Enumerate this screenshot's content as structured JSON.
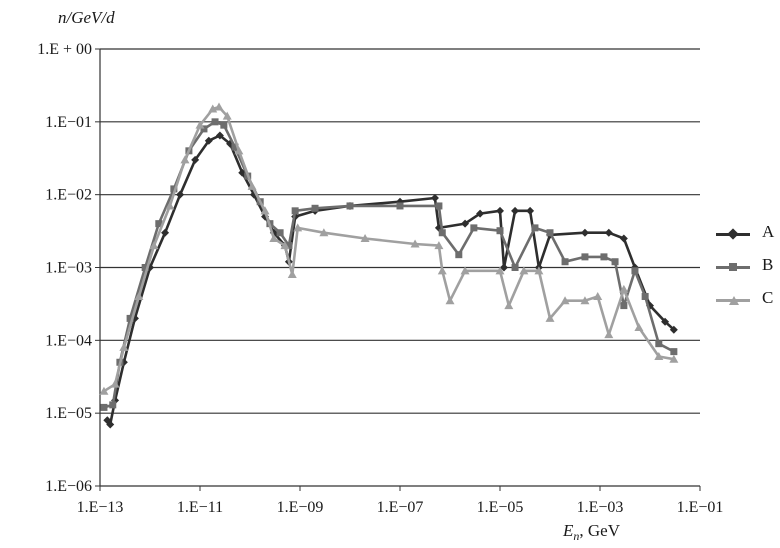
{
  "chart_data": {
    "type": "line",
    "title": "",
    "ylabel": "n/GeV/d",
    "xlabel_main": "E",
    "xlabel_sub": "n",
    "xlabel_tail": ", GeV",
    "x_scale": "log",
    "y_scale": "log",
    "xlim": [
      1e-13,
      0.1
    ],
    "ylim": [
      1e-06,
      1
    ],
    "grid": "horizontal major lines",
    "legend_position": "right",
    "x_ticks": [
      {
        "value": 1e-13,
        "label": "1.E−13"
      },
      {
        "value": 1e-11,
        "label": "1.E−11"
      },
      {
        "value": 1e-09,
        "label": "1.E−09"
      },
      {
        "value": 1e-07,
        "label": "1.E−07"
      },
      {
        "value": 1e-05,
        "label": "1.E−05"
      },
      {
        "value": 0.001,
        "label": "1.E−03"
      },
      {
        "value": 0.1,
        "label": "1.E−01"
      }
    ],
    "y_ticks": [
      {
        "value": 1,
        "label": "1.E + 00"
      },
      {
        "value": 0.1,
        "label": "1.E−01"
      },
      {
        "value": 0.01,
        "label": "1.E−02"
      },
      {
        "value": 0.001,
        "label": "1.E−03"
      },
      {
        "value": 0.0001,
        "label": "1.E−04"
      },
      {
        "value": 1e-05,
        "label": "1.E−05"
      },
      {
        "value": 1e-06,
        "label": "1.E−06"
      }
    ],
    "series": [
      {
        "name": "A",
        "color": "#2e2e2e",
        "marker": "diamond",
        "points": [
          [
            1.4e-13,
            8e-06
          ],
          [
            1.6e-13,
            7e-06
          ],
          [
            2e-13,
            1.5e-05
          ],
          [
            3e-13,
            5e-05
          ],
          [
            5e-13,
            0.0002
          ],
          [
            1e-12,
            0.001
          ],
          [
            2e-12,
            0.003
          ],
          [
            4e-12,
            0.01
          ],
          [
            8e-12,
            0.03
          ],
          [
            1.5e-11,
            0.055
          ],
          [
            2.5e-11,
            0.065
          ],
          [
            4e-11,
            0.05
          ],
          [
            7e-11,
            0.02
          ],
          [
            1.2e-10,
            0.01
          ],
          [
            2e-10,
            0.005
          ],
          [
            3e-10,
            0.003
          ],
          [
            5e-10,
            0.002
          ],
          [
            6e-10,
            0.0012
          ],
          [
            8e-10,
            0.005
          ],
          [
            2e-09,
            0.006
          ],
          [
            1e-08,
            0.007
          ],
          [
            1e-07,
            0.008
          ],
          [
            5e-07,
            0.009
          ],
          [
            6e-07,
            0.0035
          ],
          [
            2e-06,
            0.004
          ],
          [
            4e-06,
            0.0055
          ],
          [
            1e-05,
            0.006
          ],
          [
            1.2e-05,
            0.001
          ],
          [
            2e-05,
            0.006
          ],
          [
            4e-05,
            0.006
          ],
          [
            6e-05,
            0.001
          ],
          [
            0.0001,
            0.0028
          ],
          [
            0.0005,
            0.003
          ],
          [
            0.0015,
            0.003
          ],
          [
            0.003,
            0.0025
          ],
          [
            0.005,
            0.001
          ],
          [
            0.01,
            0.0003
          ],
          [
            0.02,
            0.00018
          ],
          [
            0.03,
            0.00014
          ]
        ]
      },
      {
        "name": "B",
        "color": "#6d6d6d",
        "marker": "square",
        "points": [
          [
            1.2e-13,
            1.2e-05
          ],
          [
            1.8e-13,
            1.3e-05
          ],
          [
            2.5e-13,
            5e-05
          ],
          [
            4e-13,
            0.0002
          ],
          [
            8e-13,
            0.001
          ],
          [
            1.5e-12,
            0.004
          ],
          [
            3e-12,
            0.012
          ],
          [
            6e-12,
            0.04
          ],
          [
            1.2e-11,
            0.08
          ],
          [
            2e-11,
            0.1
          ],
          [
            3e-11,
            0.09
          ],
          [
            5e-11,
            0.045
          ],
          [
            9e-11,
            0.018
          ],
          [
            1.6e-10,
            0.008
          ],
          [
            2.5e-10,
            0.004
          ],
          [
            4e-10,
            0.003
          ],
          [
            6e-10,
            0.002
          ],
          [
            8e-10,
            0.006
          ],
          [
            2e-09,
            0.0065
          ],
          [
            1e-08,
            0.007
          ],
          [
            1e-07,
            0.007
          ],
          [
            6e-07,
            0.007
          ],
          [
            7e-07,
            0.003
          ],
          [
            1.5e-06,
            0.0015
          ],
          [
            3e-06,
            0.0035
          ],
          [
            1e-05,
            0.0032
          ],
          [
            2e-05,
            0.001
          ],
          [
            5e-05,
            0.0035
          ],
          [
            0.0001,
            0.003
          ],
          [
            0.0002,
            0.0012
          ],
          [
            0.0005,
            0.0014
          ],
          [
            0.0012,
            0.0014
          ],
          [
            0.002,
            0.0012
          ],
          [
            0.003,
            0.0003
          ],
          [
            0.005,
            0.0009
          ],
          [
            0.008,
            0.0004
          ],
          [
            0.015,
            9e-05
          ],
          [
            0.03,
            7e-05
          ]
        ]
      },
      {
        "name": "C",
        "color": "#a0a0a0",
        "marker": "triangle",
        "points": [
          [
            1.2e-13,
            2e-05
          ],
          [
            2e-13,
            2.5e-05
          ],
          [
            3e-13,
            8e-05
          ],
          [
            6e-13,
            0.0004
          ],
          [
            1.2e-12,
            0.002
          ],
          [
            2.5e-12,
            0.007
          ],
          [
            5e-12,
            0.03
          ],
          [
            1e-11,
            0.09
          ],
          [
            1.8e-11,
            0.15
          ],
          [
            2.4e-11,
            0.16
          ],
          [
            3.5e-11,
            0.12
          ],
          [
            6e-11,
            0.04
          ],
          [
            1.1e-10,
            0.013
          ],
          [
            2e-10,
            0.006
          ],
          [
            3e-10,
            0.0025
          ],
          [
            5e-10,
            0.002
          ],
          [
            7e-10,
            0.0008
          ],
          [
            9e-10,
            0.0035
          ],
          [
            3e-09,
            0.003
          ],
          [
            2e-08,
            0.0025
          ],
          [
            2e-07,
            0.0021
          ],
          [
            6e-07,
            0.002
          ],
          [
            7e-07,
            0.0009
          ],
          [
            1e-06,
            0.00035
          ],
          [
            2e-06,
            0.0009
          ],
          [
            1e-05,
            0.0009
          ],
          [
            1.5e-05,
            0.0003
          ],
          [
            3e-05,
            0.0009
          ],
          [
            6e-05,
            0.0009
          ],
          [
            0.0001,
            0.0002
          ],
          [
            0.0002,
            0.00035
          ],
          [
            0.0005,
            0.00035
          ],
          [
            0.0009,
            0.0004
          ],
          [
            0.0015,
            0.00012
          ],
          [
            0.003,
            0.0005
          ],
          [
            0.006,
            0.00015
          ],
          [
            0.015,
            6e-05
          ],
          [
            0.03,
            5.5e-05
          ]
        ]
      }
    ]
  }
}
